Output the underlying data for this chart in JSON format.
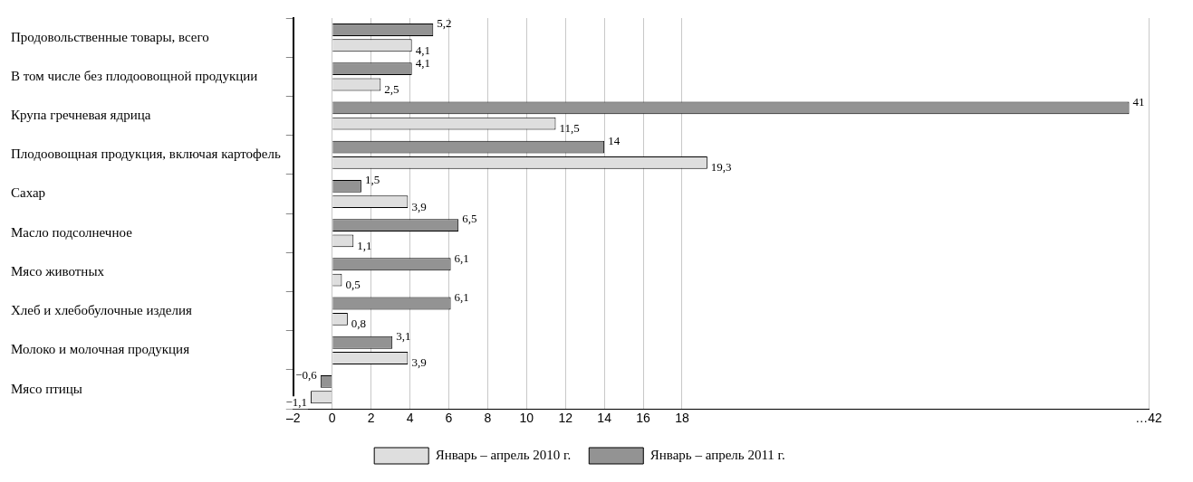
{
  "chart_data": {
    "type": "bar",
    "orientation": "horizontal",
    "categories": [
      "Продовольственные товары, всего",
      "В том числе без плодоовощной продукции",
      "Крупа гречневая ядрица",
      "Плодоовощная продукция, включая картофель",
      "Сахар",
      "Масло подсолнечное",
      "Мясо животных",
      "Хлеб и хлебобулочные изделия",
      "Молоко и молочная продукция",
      "Мясо птицы"
    ],
    "series": [
      {
        "name": "Январь – апрель 2010 г.",
        "color": "#dedede",
        "values": [
          4.1,
          2.5,
          11.5,
          19.3,
          3.9,
          1.1,
          0.5,
          0.8,
          3.9,
          -1.1
        ],
        "value_labels": [
          "4,1",
          "2,5",
          "11,5",
          "19,3",
          "3,9",
          "1,1",
          "0,5",
          "0,8",
          "3,9",
          "−1,1"
        ]
      },
      {
        "name": "Январь – апрель 2011 г.",
        "color": "#939393",
        "values": [
          5.2,
          4.1,
          41,
          14,
          1.5,
          6.5,
          6.1,
          6.1,
          3.1,
          -0.6
        ],
        "value_labels": [
          "5,2",
          "4,1",
          "41",
          "14",
          "1,5",
          "6,5",
          "6,1",
          "6,1",
          "3,1",
          "−0,6"
        ]
      }
    ],
    "xlim": [
      -2,
      42
    ],
    "xticks": [
      {
        "value": -2,
        "label": "–2"
      },
      0,
      2,
      4,
      6,
      8,
      10,
      12,
      14,
      16,
      18,
      {
        "value": 42,
        "label": "…42"
      }
    ],
    "grid": "x",
    "legend": "bottom"
  }
}
